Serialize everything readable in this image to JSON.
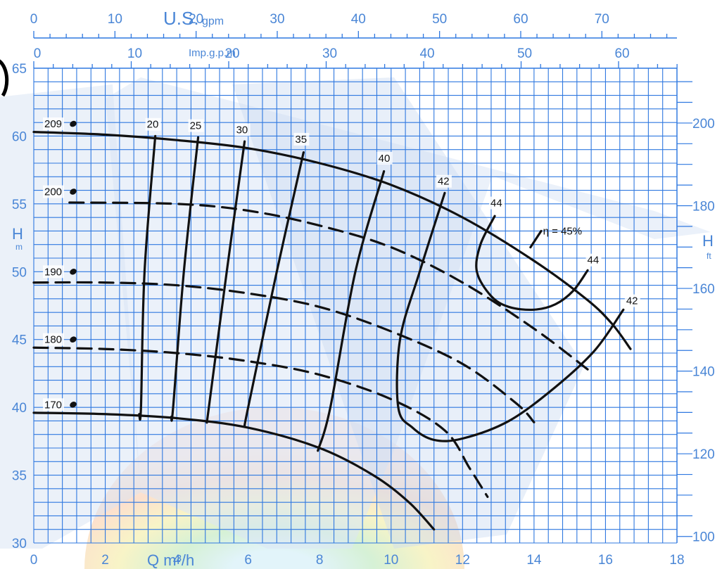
{
  "chart_data": {
    "type": "line",
    "title": "",
    "xlabel": "Q m³/h",
    "ylabel_left": "H",
    "ylabel_left_unit": "m",
    "ylabel_right": "H",
    "ylabel_right_unit": "ft",
    "top_axis_1_label": "U.S.",
    "top_axis_1_unit": "gpm",
    "top_axis_2_label": "Imp.g.p.m",
    "xlim": [
      0,
      18
    ],
    "ylim": [
      30,
      65
    ],
    "x_ticks": [
      "0",
      "2",
      "4",
      "6",
      "8",
      "10",
      "12",
      "14",
      "16",
      "18"
    ],
    "y_ticks_left": [
      "30",
      "35",
      "40",
      "45",
      "50",
      "55",
      "60",
      "65"
    ],
    "y_ticks_right": [
      "100",
      "120",
      "140",
      "160",
      "180",
      "200"
    ],
    "top1_ticks": [
      "0",
      "10",
      "20",
      "30",
      "40",
      "50",
      "60",
      "70"
    ],
    "top2_ticks": [
      "0",
      "10",
      "20",
      "30",
      "40",
      "50",
      "60"
    ],
    "grid": true,
    "impeller_series": [
      {
        "name": "209",
        "style": "solid",
        "points": [
          [
            0,
            60.3
          ],
          [
            2,
            60.1
          ],
          [
            4,
            59.7
          ],
          [
            6,
            59.1
          ],
          [
            8,
            58.0
          ],
          [
            10,
            56.4
          ],
          [
            12,
            54.0
          ],
          [
            14,
            50.8
          ],
          [
            15.5,
            47.9
          ],
          [
            16.2,
            46.1
          ],
          [
            16.7,
            44.3
          ]
        ]
      },
      {
        "name": "200",
        "style": "dashed",
        "points": [
          [
            1,
            55.1
          ],
          [
            4,
            55.0
          ],
          [
            6,
            54.5
          ],
          [
            8,
            53.4
          ],
          [
            10,
            51.8
          ],
          [
            12,
            49.2
          ],
          [
            14,
            45.8
          ],
          [
            15.5,
            42.8
          ]
        ]
      },
      {
        "name": "190",
        "style": "dashed",
        "points": [
          [
            0,
            49.2
          ],
          [
            2,
            49.2
          ],
          [
            4,
            49.0
          ],
          [
            6,
            48.4
          ],
          [
            8,
            47.4
          ],
          [
            10,
            45.6
          ],
          [
            12,
            43.2
          ],
          [
            13.5,
            40.3
          ],
          [
            14,
            38.9
          ]
        ]
      },
      {
        "name": "180",
        "style": "dashed",
        "points": [
          [
            0,
            44.4
          ],
          [
            2,
            44.3
          ],
          [
            4,
            44.0
          ],
          [
            6,
            43.4
          ],
          [
            8,
            42.4
          ],
          [
            10,
            40.6
          ],
          [
            11.5,
            38.3
          ],
          [
            12.2,
            35.5
          ],
          [
            12.7,
            33.4
          ]
        ]
      },
      {
        "name": "170",
        "style": "solid",
        "points": [
          [
            0,
            39.6
          ],
          [
            2,
            39.5
          ],
          [
            4,
            39.2
          ],
          [
            6,
            38.5
          ],
          [
            8,
            37.0
          ],
          [
            9.5,
            35.0
          ],
          [
            10.5,
            33.0
          ],
          [
            11.2,
            31.0
          ]
        ]
      }
    ],
    "efficiency_series": [
      {
        "name": "20",
        "points": [
          [
            3.4,
            60.0
          ],
          [
            3.1,
            50.0
          ],
          [
            3.0,
            40.0
          ],
          [
            2.95,
            39.5
          ]
        ]
      },
      {
        "name": "25",
        "points": [
          [
            4.6,
            59.9
          ],
          [
            4.2,
            50.0
          ],
          [
            3.9,
            40.0
          ],
          [
            3.85,
            39.3
          ]
        ]
      },
      {
        "name": "30",
        "points": [
          [
            5.9,
            59.6
          ],
          [
            5.4,
            50.0
          ],
          [
            4.9,
            40.0
          ],
          [
            4.85,
            39.0
          ]
        ]
      },
      {
        "name": "35",
        "points": [
          [
            7.55,
            58.8
          ],
          [
            6.8,
            50.0
          ],
          [
            6.0,
            40.0
          ],
          [
            5.9,
            38.6
          ]
        ]
      },
      {
        "name": "40",
        "points": [
          [
            9.8,
            57.4
          ],
          [
            9.0,
            50.0
          ],
          [
            8.3,
            40.0
          ],
          [
            7.95,
            36.8
          ]
        ]
      },
      {
        "name": "42",
        "points": [
          [
            11.5,
            55.8
          ],
          [
            10.8,
            50.0
          ],
          [
            10.25,
            45.0
          ],
          [
            10.2,
            40.0
          ],
          [
            10.6,
            38.5
          ],
          [
            11.2,
            37.6
          ],
          [
            12.0,
            37.7
          ],
          [
            13.3,
            39.0
          ],
          [
            14.6,
            41.5
          ],
          [
            15.7,
            44.2
          ],
          [
            16.5,
            47.2
          ]
        ]
      },
      {
        "name": "44",
        "points": [
          [
            12.9,
            54.1
          ],
          [
            12.5,
            52.0
          ],
          [
            12.4,
            50.0
          ],
          [
            12.8,
            48.2
          ],
          [
            13.3,
            47.4
          ],
          [
            14.0,
            47.2
          ],
          [
            14.6,
            47.6
          ],
          [
            15.1,
            48.6
          ],
          [
            15.5,
            50.1
          ]
        ]
      },
      {
        "name": "η = 45%",
        "points": [
          [
            13.9,
            51.8
          ],
          [
            14.2,
            53.0
          ]
        ]
      }
    ]
  }
}
